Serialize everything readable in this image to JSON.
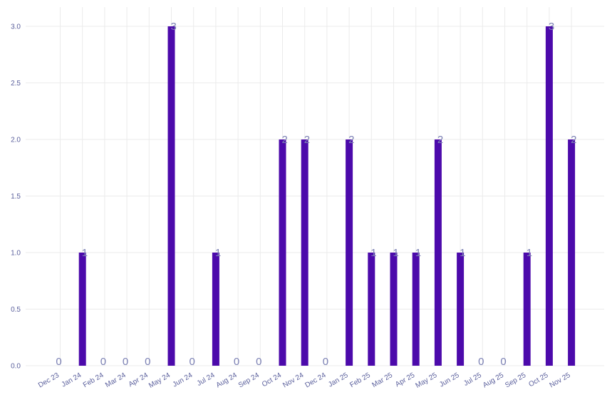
{
  "chart_data": {
    "type": "bar",
    "categories": [
      "Dec 23",
      "Jan 24",
      "Feb 24",
      "Mar 24",
      "Apr 24",
      "May 24",
      "Jun 24",
      "Jul 24",
      "Aug 24",
      "Sep 24",
      "Oct 24",
      "Nov 24",
      "Dec 24",
      "Jan 25",
      "Feb 25",
      "Mar 25",
      "Apr 25",
      "May 25",
      "Jun 25",
      "Jul 25",
      "Aug 25",
      "Sep 25",
      "Oct 25",
      "Nov 25"
    ],
    "values": [
      0,
      1,
      0,
      0,
      0,
      3,
      0,
      1,
      0,
      0,
      2,
      2,
      0,
      2,
      1,
      1,
      1,
      2,
      1,
      0,
      0,
      1,
      3,
      2
    ],
    "data_labels": [
      "0",
      "1",
      "0",
      "0",
      "0",
      "3",
      "0",
      "1",
      "0",
      "0",
      "2",
      "2",
      "0",
      "2",
      "1",
      "1",
      "1",
      "2",
      "1",
      "0",
      "0",
      "1",
      "3",
      "2"
    ],
    "yticks": [
      "0.0",
      "0.5",
      "1.0",
      "1.5",
      "2.0",
      "2.5",
      "3.0"
    ],
    "ylim": [
      0,
      3.1
    ],
    "grid": true,
    "legend": "none",
    "colors": {
      "bar": "#4c0aab",
      "label": "#7b80b4",
      "tick": "#5a5f9c",
      "grid": "#ebebeb"
    }
  }
}
